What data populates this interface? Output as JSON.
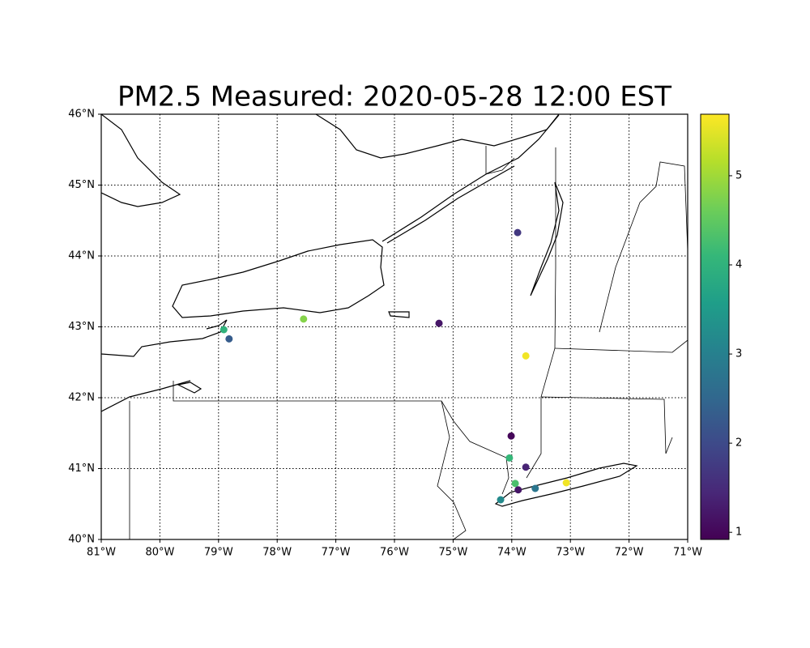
{
  "chart_data": {
    "type": "scatter",
    "title": "PM2.5 Measured: 2020-05-28 12:00 EST",
    "x": [
      -73.9,
      -75.24,
      -77.55,
      -78.91,
      -78.82,
      -73.76,
      -74.01,
      -74.04,
      -73.76,
      -73.94,
      -73.89,
      -73.6,
      -73.07,
      -74.19
    ],
    "y": [
      44.33,
      43.05,
      43.11,
      42.96,
      42.83,
      42.59,
      41.46,
      41.15,
      41.02,
      40.79,
      40.7,
      40.72,
      40.8,
      40.56
    ],
    "values": [
      1.7,
      1.2,
      4.8,
      4.0,
      2.3,
      5.6,
      1.0,
      4.1,
      1.4,
      4.3,
      1.2,
      2.8,
      5.6,
      3.2
    ],
    "colormap": "viridis",
    "xlim": [
      -81,
      -71
    ],
    "xticks": [
      {
        "value": -81,
        "label": "81°W"
      },
      {
        "value": -80,
        "label": "80°W"
      },
      {
        "value": -79,
        "label": "79°W"
      },
      {
        "value": -78,
        "label": "78°W"
      },
      {
        "value": -77,
        "label": "77°W"
      },
      {
        "value": -76,
        "label": "76°W"
      },
      {
        "value": -75,
        "label": "75°W"
      },
      {
        "value": -74,
        "label": "74°W"
      },
      {
        "value": -73,
        "label": "73°W"
      },
      {
        "value": -72,
        "label": "72°W"
      },
      {
        "value": -71,
        "label": "71°W"
      }
    ],
    "ylim": [
      40,
      46
    ],
    "yticks": [
      {
        "value": 40,
        "label": "40°N"
      },
      {
        "value": 41,
        "label": "41°N"
      },
      {
        "value": 42,
        "label": "42°N"
      },
      {
        "value": 43,
        "label": "43°N"
      },
      {
        "value": 44,
        "label": "44°N"
      },
      {
        "value": 45,
        "label": "45°N"
      },
      {
        "value": 46,
        "label": "46°N"
      }
    ],
    "clim": [
      0.92,
      5.69
    ],
    "cticks": [
      1,
      2,
      3,
      4,
      5
    ],
    "grid": true
  }
}
